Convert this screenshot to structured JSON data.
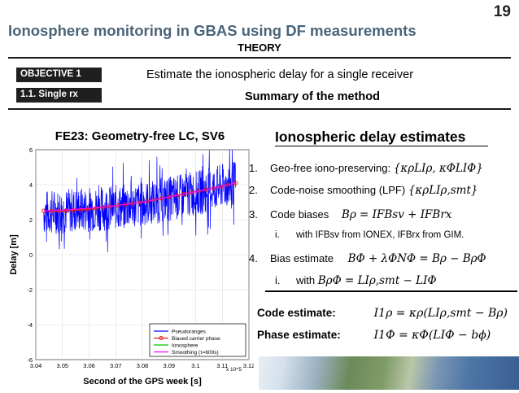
{
  "page_number": "19",
  "slide_title": "Ionosphere monitoring in GBAS using DF measurements",
  "section": "THEORY",
  "badges": {
    "objective": "OBJECTIVE 1",
    "subsection": "1.1. Single rx"
  },
  "objective_text": "Estimate the ionospheric delay for a single receiver",
  "method_title": "Summary of the method",
  "right": {
    "heading": "Ionospheric delay estimates",
    "items": [
      {
        "num": "1.",
        "label": "Geo-free iono-preserving:",
        "math": "{κρLIρ, κΦLIΦ}"
      },
      {
        "num": "2.",
        "label": "Code-noise smoothing (LPF)",
        "math": "{κρLIρ,smt}"
      },
      {
        "num": "3.",
        "label": "Code biases",
        "math": "Bρ = IFBsv + IFBrx"
      },
      {
        "num": "i.",
        "label": "with IFBsv from IONEX, IFBrx from GIM."
      },
      {
        "num": "4.",
        "label": "Bias estimate",
        "math": "BΦ + λΦNΦ = Bρ − BρΦ"
      },
      {
        "num": "i.",
        "label": "with",
        "math": "BρΦ = LIρ,smt − LIΦ"
      }
    ],
    "code_estimate": {
      "label": "Code estimate:",
      "formula": "I1ρ = κρ(LIρ,smt − Bρ)"
    },
    "phase_estimate": {
      "label": "Phase estimate:",
      "formula": "I1Φ = κΦ(LIΦ − bϕ)"
    }
  },
  "chart_data": {
    "type": "line",
    "title": "FE23: Geometry-free LC, SV6",
    "xlabel": "Second of the GPS week [s]",
    "ylabel": "Delay [m]",
    "x_multiplier": "x 10^5",
    "xlim": [
      3.04,
      3.12
    ],
    "ylim": [
      -6,
      6
    ],
    "xticks": [
      "3.04",
      "3.05",
      "3.06",
      "3.07",
      "3.08",
      "3.09",
      "3.1",
      "3.11",
      "3.12"
    ],
    "yticks": [
      "6",
      "4",
      "2",
      "0",
      "-2",
      "-4",
      "-6"
    ],
    "legend": [
      "Pseudoranges",
      "Biased carrier phase",
      "Ionosphere",
      "Smoothing (τ=600s)"
    ],
    "series": [
      {
        "name": "Pseudoranges",
        "color": "#0000ff",
        "x": [
          3.043,
          3.05,
          3.06,
          3.07,
          3.08,
          3.09,
          3.1,
          3.11,
          3.115
        ],
        "y": [
          2.4,
          2.5,
          2.6,
          2.7,
          2.9,
          3.2,
          3.5,
          3.9,
          4.1
        ],
        "noise": 1.3
      },
      {
        "name": "Biased carrier phase",
        "color": "#e01e1e",
        "x": [
          3.043,
          3.05,
          3.06,
          3.07,
          3.08,
          3.09,
          3.1,
          3.11,
          3.115
        ],
        "y": [
          2.5,
          2.5,
          2.6,
          2.8,
          3.0,
          3.3,
          3.6,
          3.9,
          4.1
        ]
      },
      {
        "name": "Ionosphere",
        "color": "#00c000",
        "x": [
          3.043,
          3.05,
          3.06,
          3.07,
          3.08,
          3.09,
          3.1,
          3.11,
          3.115
        ],
        "y": [
          2.5,
          2.5,
          2.6,
          2.8,
          3.0,
          3.3,
          3.6,
          3.9,
          4.1
        ]
      },
      {
        "name": "Smoothing (τ=600s)",
        "color": "#ff00ff",
        "x": [
          3.043,
          3.05,
          3.06,
          3.07,
          3.08,
          3.09,
          3.1,
          3.11,
          3.115
        ],
        "y": [
          2.5,
          2.55,
          2.65,
          2.8,
          3.0,
          3.3,
          3.6,
          3.9,
          4.1
        ]
      }
    ]
  }
}
